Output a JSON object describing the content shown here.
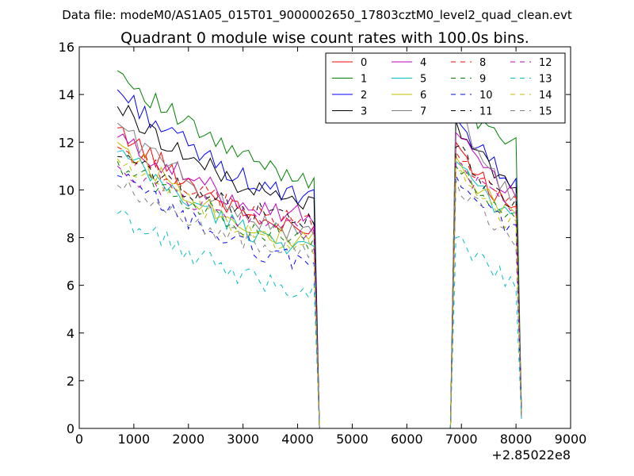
{
  "chart_data": {
    "type": "line",
    "suptitle": "Data file: modeM0/AS1A05_015T01_9000002650_17803cztM0_level2_quad_clean.evt",
    "title": "Quadrant 0 module wise count rates with 100.0s bins.",
    "xlabel": "",
    "ylabel": "",
    "x_offset_label": "+2.85022e8",
    "xlim": [
      0,
      9000
    ],
    "ylim": [
      0,
      16
    ],
    "xticks": [
      0,
      1000,
      2000,
      3000,
      4000,
      5000,
      6000,
      7000,
      8000,
      9000
    ],
    "yticks": [
      0,
      2,
      4,
      6,
      8,
      10,
      12,
      14,
      16
    ],
    "xtick_labels": [
      "0",
      "1000",
      "2000",
      "3000",
      "4000",
      "5000",
      "6000",
      "7000",
      "8000",
      "9000"
    ],
    "ytick_labels": [
      "0",
      "2",
      "4",
      "6",
      "8",
      "10",
      "12",
      "14",
      "16"
    ],
    "grid": false,
    "legend_position": "top-right",
    "legend_columns": 4,
    "segment1": {
      "x_start": 700,
      "x_end": 4300,
      "step": 100
    },
    "segment2": {
      "x_start": 6900,
      "x_end": 8000,
      "step": 100
    },
    "gap": {
      "x_start": 4400,
      "x_end": 6800,
      "value": 0
    },
    "final_point": {
      "x": 8100
    },
    "series": [
      {
        "name": "0",
        "color": "#ff0000",
        "dash": false,
        "start": 12.6,
        "end_level": 8.2,
        "peak2": 12.0,
        "level2": 9.2,
        "last": 0.7
      },
      {
        "name": "1",
        "color": "#008000",
        "dash": false,
        "start": 15.0,
        "end_level": 10.5,
        "peak2": 14.0,
        "level2": 11.8,
        "last": 0.7
      },
      {
        "name": "2",
        "color": "#0000ff",
        "dash": false,
        "start": 14.2,
        "end_level": 9.6,
        "peak2": 13.0,
        "level2": 10.4,
        "last": 0.6
      },
      {
        "name": "3",
        "color": "#000000",
        "dash": false,
        "start": 13.5,
        "end_level": 9.4,
        "peak2": 12.9,
        "level2": 10.1,
        "last": 0.5
      },
      {
        "name": "4",
        "color": "#bf00bf",
        "dash": false,
        "start": 12.2,
        "end_level": 8.9,
        "peak2": 12.4,
        "level2": 9.8,
        "last": 0.7
      },
      {
        "name": "5",
        "color": "#00bfbf",
        "dash": false,
        "start": 11.6,
        "end_level": 7.6,
        "peak2": 11.2,
        "level2": 8.8,
        "last": 0.6
      },
      {
        "name": "6",
        "color": "#bfbf00",
        "dash": false,
        "start": 12.0,
        "end_level": 7.8,
        "peak2": 11.4,
        "level2": 8.9,
        "last": 0.7
      },
      {
        "name": "7",
        "color": "#808080",
        "dash": false,
        "start": 12.8,
        "end_level": 8.1,
        "peak2": 13.6,
        "level2": 9.6,
        "last": 0.6
      },
      {
        "name": "8",
        "color": "#ff0000",
        "dash": true,
        "start": 11.8,
        "end_level": 8.6,
        "peak2": 11.6,
        "level2": 9.4,
        "last": 0.6
      },
      {
        "name": "9",
        "color": "#008000",
        "dash": true,
        "start": 11.2,
        "end_level": 7.9,
        "peak2": 11.0,
        "level2": 8.8,
        "last": 0.5
      },
      {
        "name": "10",
        "color": "#0000ff",
        "dash": true,
        "start": 10.6,
        "end_level": 7.0,
        "peak2": 10.6,
        "level2": 8.3,
        "last": 0.5
      },
      {
        "name": "11",
        "color": "#000000",
        "dash": true,
        "start": 11.4,
        "end_level": 8.7,
        "peak2": 11.8,
        "level2": 9.4,
        "last": 0.6
      },
      {
        "name": "12",
        "color": "#bf00bf",
        "dash": true,
        "start": 11.0,
        "end_level": 8.3,
        "peak2": 11.2,
        "level2": 9.1,
        "last": 0.6
      },
      {
        "name": "13",
        "color": "#00bfbf",
        "dash": true,
        "start": 9.0,
        "end_level": 5.8,
        "peak2": 8.0,
        "level2": 6.1,
        "last": 0.4
      },
      {
        "name": "14",
        "color": "#bfbf00",
        "dash": true,
        "start": 11.3,
        "end_level": 7.6,
        "peak2": 10.8,
        "level2": 8.6,
        "last": 0.5
      },
      {
        "name": "15",
        "color": "#808080",
        "dash": true,
        "start": 10.2,
        "end_level": 7.4,
        "peak2": 10.4,
        "level2": 8.0,
        "last": 0.5
      }
    ]
  }
}
